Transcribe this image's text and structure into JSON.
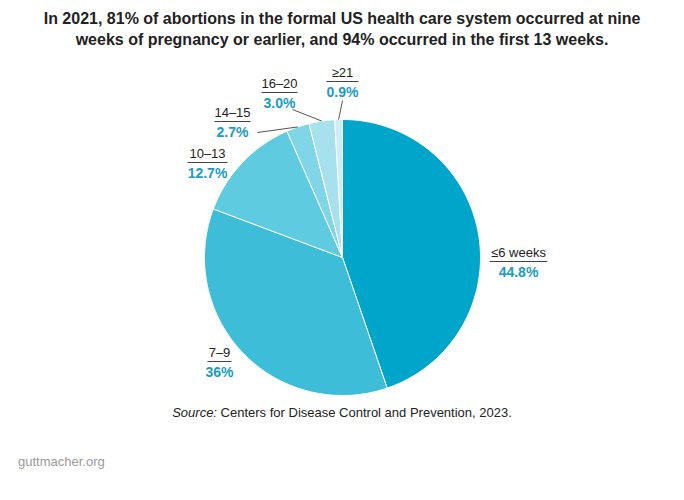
{
  "chart_data": {
    "type": "pie",
    "title": "In 2021, 81% of abortions in the formal US health care system occurred at nine weeks of pregnancy or earlier, and 94% occurred in the first 13 weeks.",
    "categories": [
      "≤6 weeks",
      "7–9",
      "10–13",
      "14–15",
      "16–20",
      "≥21"
    ],
    "values": [
      44.8,
      36,
      12.7,
      2.7,
      3.0,
      0.9
    ],
    "value_labels": [
      "44.8%",
      "36%",
      "12.7%",
      "2.7%",
      "3.0%",
      "0.9%"
    ],
    "colors": [
      "#00a6c9",
      "#3dbdd8",
      "#5ecbe0",
      "#80d6e7",
      "#a6e1ed",
      "#cdeef4"
    ],
    "data_labels": true,
    "caption": "Source: Centers for Disease Control and Prevention, 2023.",
    "footer": "guttmacher.org"
  }
}
